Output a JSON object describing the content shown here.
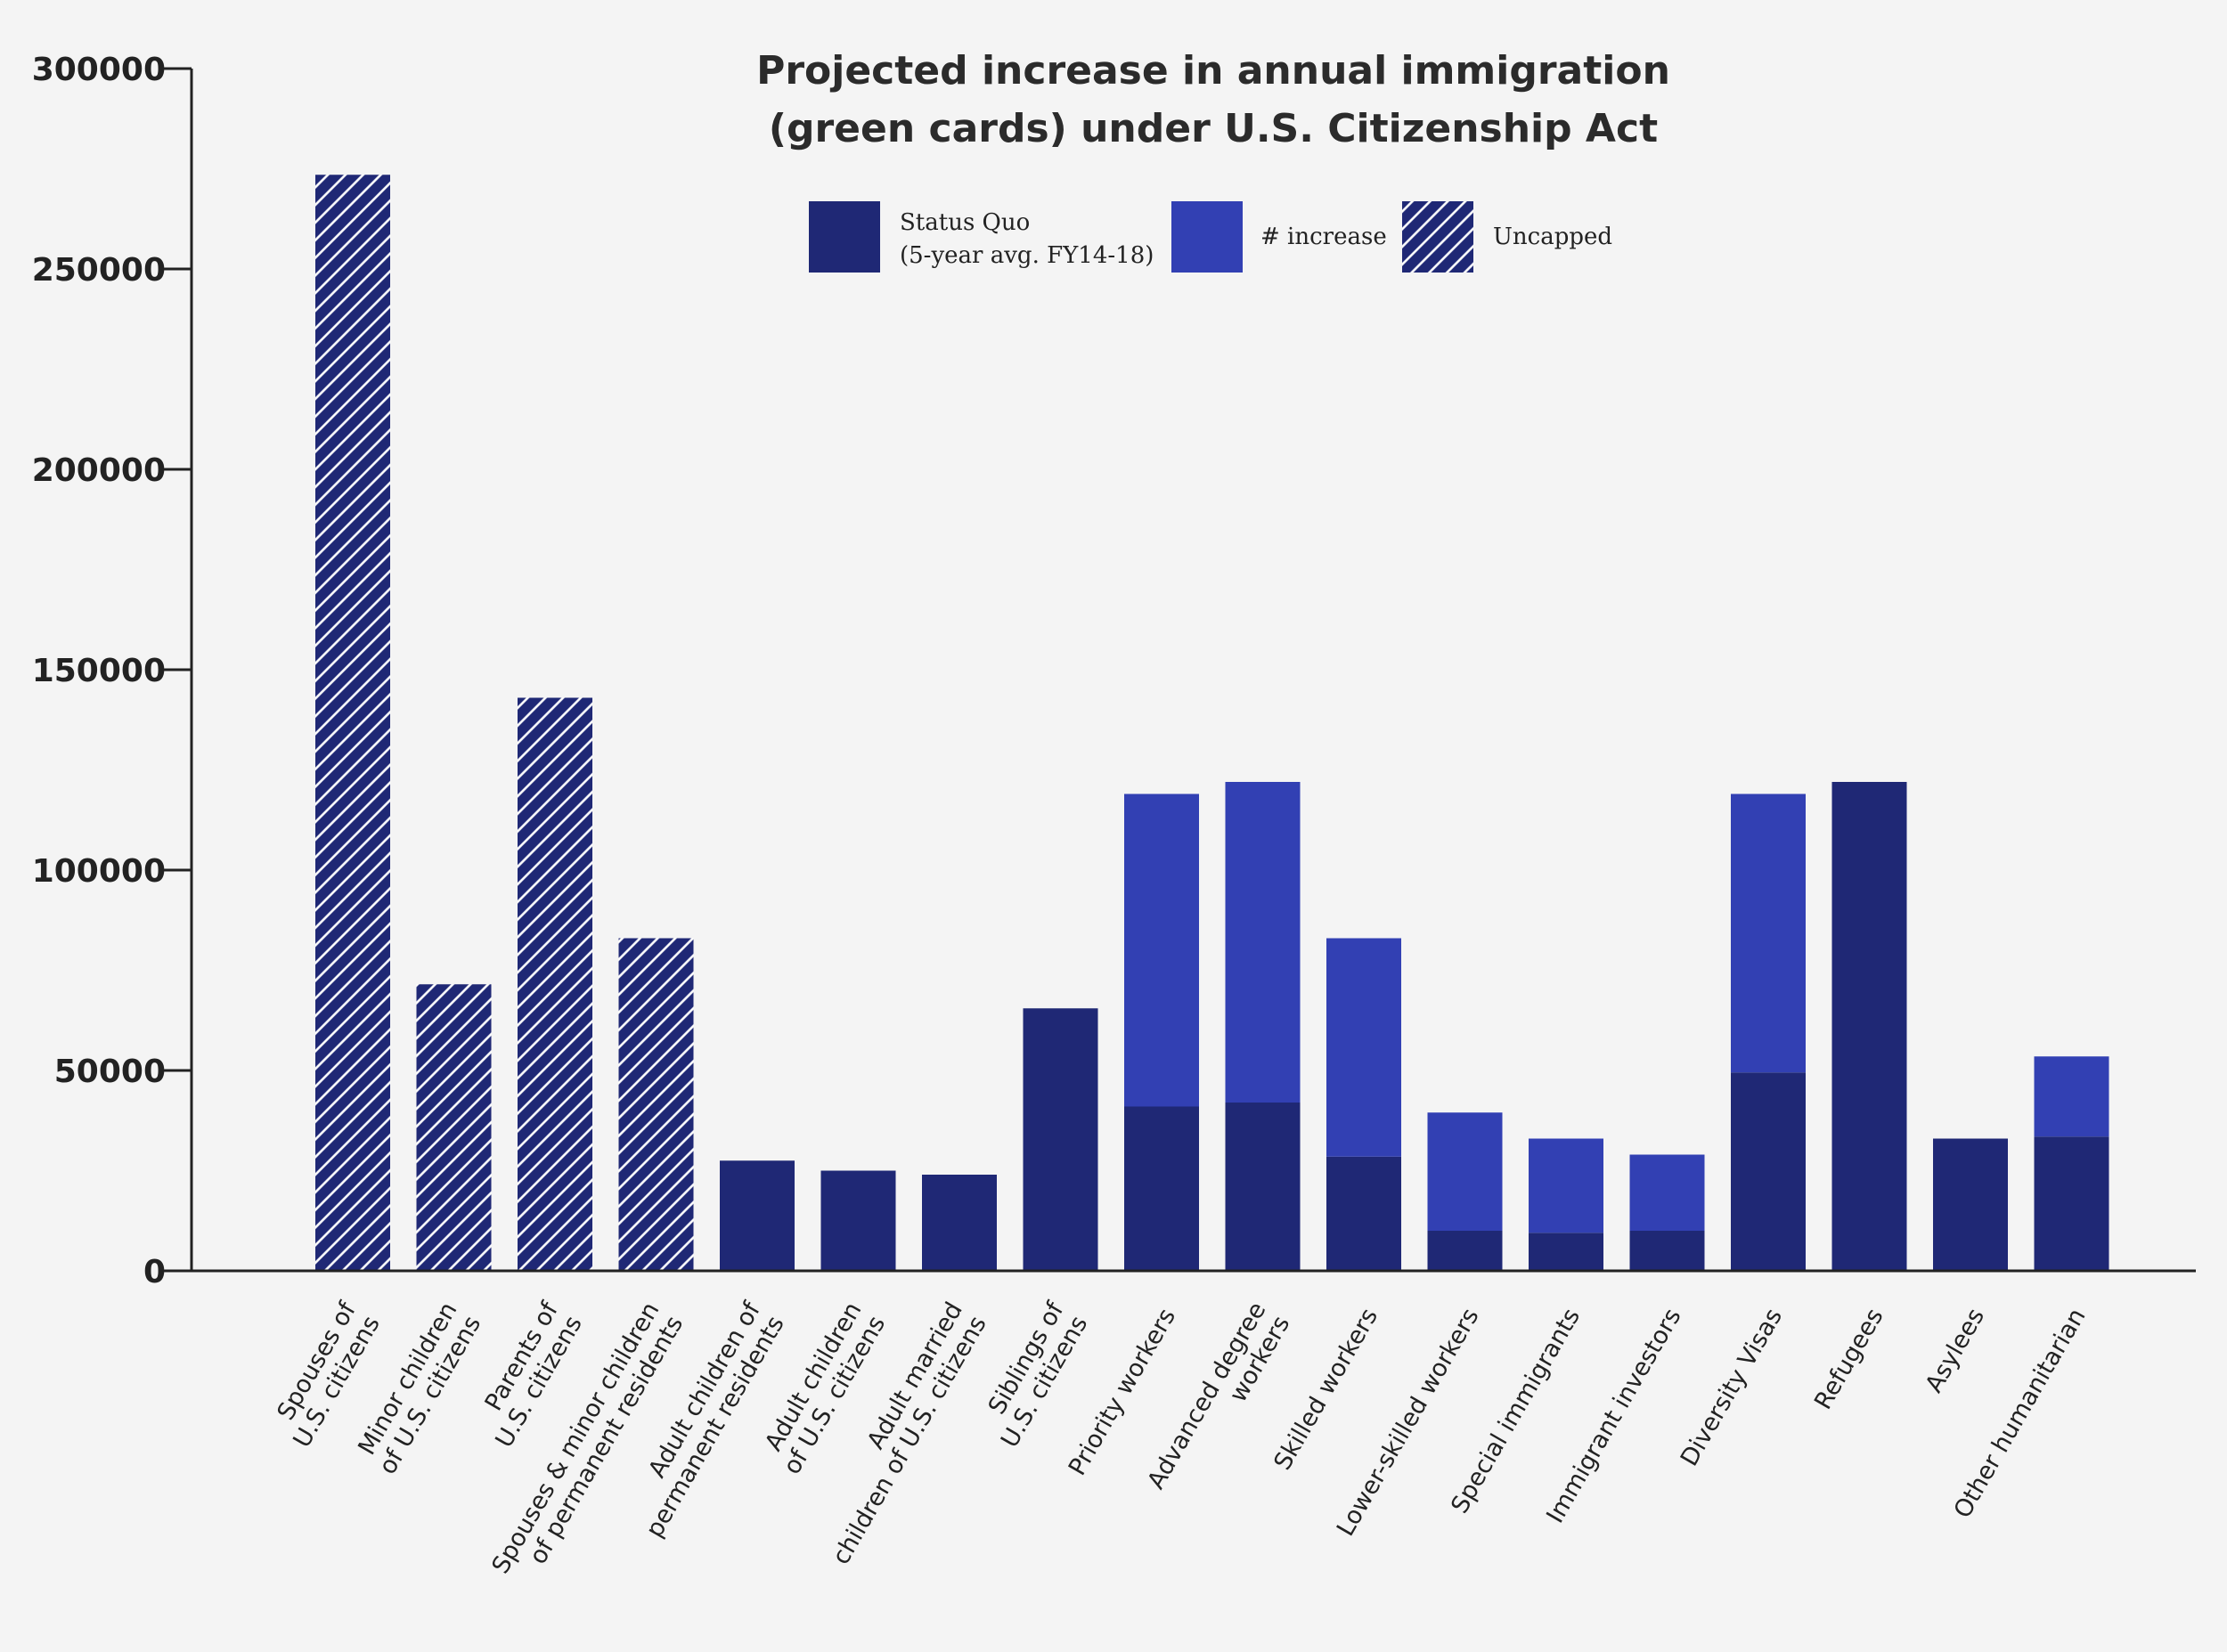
{
  "chart_data": {
    "type": "bar",
    "stacked": true,
    "title": [
      "Projected increase in annual immigration",
      "(green cards) under U.S. Citizenship Act"
    ],
    "xlabel": "",
    "ylabel": "",
    "ylim": [
      0,
      300000
    ],
    "yticks": [
      0,
      50000,
      100000,
      150000,
      200000,
      250000,
      300000
    ],
    "ytick_labels": [
      "0",
      "50000",
      "100000",
      "150000",
      "200000",
      "250000",
      "300000"
    ],
    "grid": false,
    "legend_position": "top-center",
    "categories": [
      [
        "Spouses of",
        "U.S. citizens"
      ],
      [
        "Minor children",
        "of U.S. citizens"
      ],
      [
        "Parents of",
        "U.S. citizens"
      ],
      [
        "Spouses & minor children",
        "of permanent residents"
      ],
      [
        "Adult children of",
        "permanent residents"
      ],
      [
        "Adult children",
        "of U.S. citizens"
      ],
      [
        "Adult married",
        "children of U.S. citizens"
      ],
      [
        "Siblings of",
        "U.S. citizens"
      ],
      [
        "Priority workers"
      ],
      [
        "Advanced degree",
        "workers"
      ],
      [
        "Skilled workers"
      ],
      [
        "Lower-skilled workers"
      ],
      [
        "Special immigrants"
      ],
      [
        "Immigrant investors"
      ],
      [
        "Diversity Visas"
      ],
      [
        "Refugees"
      ],
      [
        "Asylees"
      ],
      [
        "Other humanitarian"
      ]
    ],
    "series": [
      {
        "name": "Status Quo (5-year avg. FY14-18)",
        "legend_lines": [
          "Status Quo",
          "(5-year avg. FY14-18)"
        ],
        "color": "#1f2875",
        "values": [
          0,
          0,
          0,
          0,
          27500,
          25000,
          24000,
          65500,
          41000,
          42000,
          28500,
          10000,
          9500,
          10000,
          49500,
          122000,
          33000,
          33500
        ]
      },
      {
        "name": "# increase",
        "legend_lines": [
          "# increase"
        ],
        "color": "#3240b3",
        "values": [
          0,
          0,
          0,
          0,
          0,
          0,
          0,
          0,
          78000,
          80000,
          54500,
          29500,
          23500,
          19000,
          69500,
          0,
          0,
          20000
        ]
      },
      {
        "name": "Uncapped",
        "legend_lines": [
          "Uncapped"
        ],
        "color": "#1f2875",
        "pattern": "diagonal-hatch",
        "values": [
          273500,
          71500,
          143000,
          83000,
          0,
          0,
          0,
          0,
          0,
          0,
          0,
          0,
          0,
          0,
          0,
          0,
          0,
          0
        ]
      }
    ]
  }
}
